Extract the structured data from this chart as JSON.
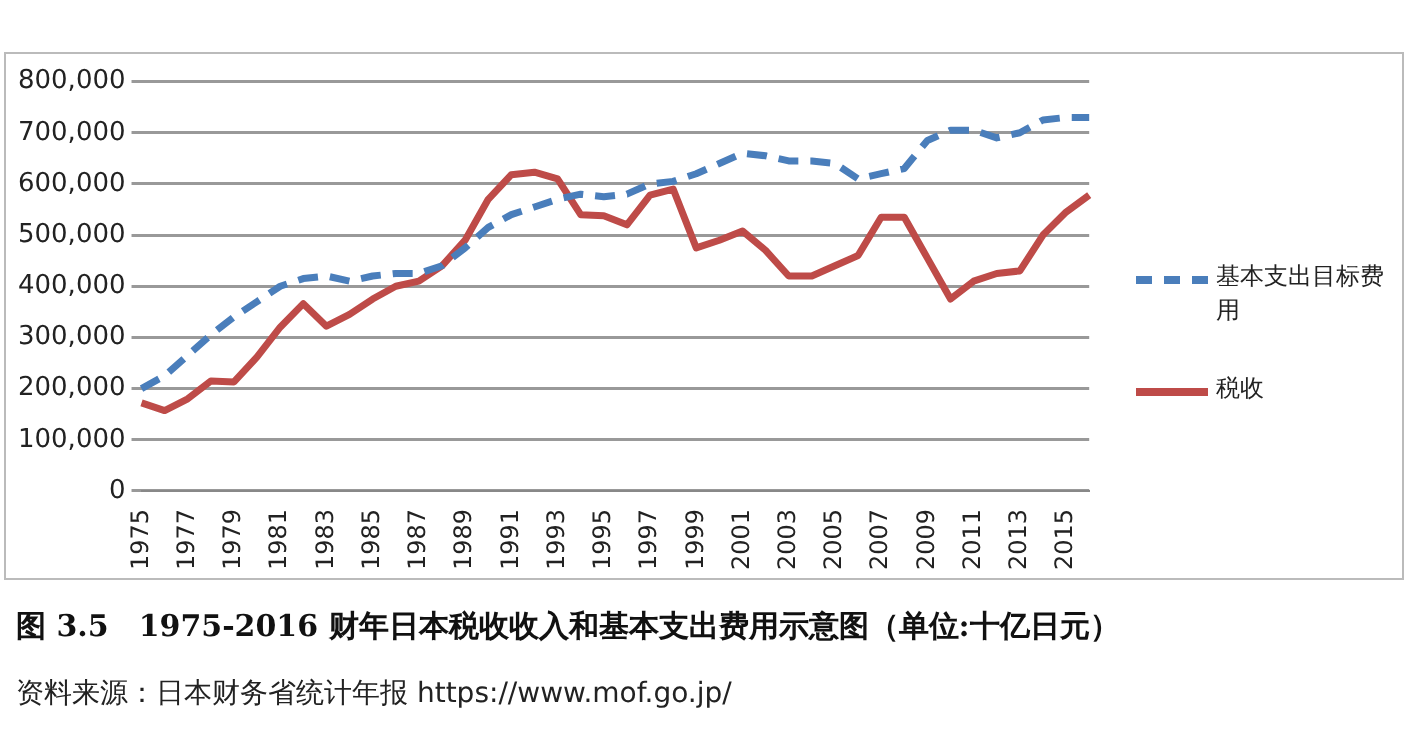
{
  "chart_data": {
    "type": "line",
    "title": "图 3.5　1975-2016 财年日本税收收入和基本支出费用示意图（单位:十亿日元）",
    "annotations": [
      "资料来源：日本财务省统计年报 https://www.mof.go.jp/"
    ],
    "categories": [
      "1975",
      null,
      "1977",
      null,
      "1979",
      null,
      "1981",
      null,
      "1983",
      null,
      "1985",
      null,
      "1987",
      null,
      "1989",
      null,
      "1991",
      null,
      "1993",
      null,
      "1995",
      null,
      "1997",
      null,
      "1999",
      null,
      "2001",
      null,
      "2003",
      null,
      "2005",
      null,
      "2007",
      null,
      "2009",
      null,
      "2011",
      null,
      "2013",
      null,
      "2015",
      null
    ],
    "series": [
      {
        "name": "基本支出目标费用",
        "color": "#4a7ebb",
        "line_style": "dashed",
        "values": [
          200000,
          225000,
          265000,
          305000,
          340000,
          370000,
          400000,
          415000,
          420000,
          410000,
          420000,
          425000,
          425000,
          440000,
          475000,
          515000,
          540000,
          555000,
          570000,
          580000,
          575000,
          580000,
          600000,
          605000,
          620000,
          640000,
          660000,
          655000,
          645000,
          645000,
          640000,
          610000,
          620000,
          630000,
          685000,
          705000,
          705000,
          690000,
          700000,
          725000,
          730000,
          730000
        ]
      },
      {
        "name": "税收",
        "color": "#be4b48",
        "line_style": "solid",
        "values": [
          172000,
          157000,
          180000,
          215000,
          213000,
          262000,
          320000,
          366000,
          322000,
          345000,
          375000,
          400000,
          410000,
          440000,
          490000,
          570000,
          618000,
          623000,
          610000,
          540000,
          538000,
          520000,
          578000,
          590000,
          475000,
          490000,
          508000,
          470000,
          420000,
          420000,
          440000,
          460000,
          535000,
          535000,
          455000,
          375000,
          410000,
          425000,
          430000,
          500000,
          545000,
          578000
        ]
      }
    ],
    "ylim": [
      0,
      800000
    ],
    "yticks": [
      {
        "value": 0,
        "label": "0"
      },
      {
        "value": 100000,
        "label": "100,000"
      },
      {
        "value": 200000,
        "label": "200,000"
      },
      {
        "value": 300000,
        "label": "300,000"
      },
      {
        "value": 400000,
        "label": "400,000"
      },
      {
        "value": 500000,
        "label": "500,000"
      },
      {
        "value": 600000,
        "label": "600,000"
      },
      {
        "value": 700000,
        "label": "700,000"
      },
      {
        "value": 800000,
        "label": "800,000"
      }
    ],
    "grid": "y",
    "legend": "right",
    "marker": "none"
  }
}
